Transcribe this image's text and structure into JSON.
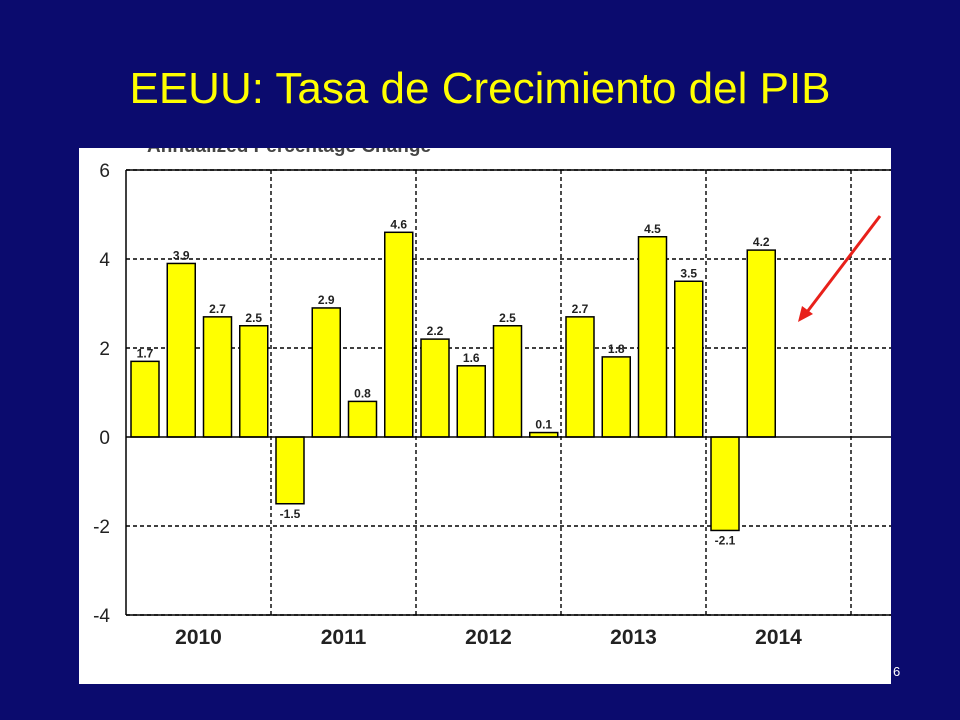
{
  "slide": {
    "title": "EEUU: Tasa de Crecimiento del PIB",
    "page_number": "6"
  },
  "colors": {
    "background": "#0b0b6e",
    "title": "#ffff00",
    "bar_fill": "#ffff00",
    "bar_stroke": "#000000",
    "arrow": "#e8201a"
  },
  "chart_data": {
    "type": "bar",
    "subtitle": "Annualized Percentage Change",
    "year_labels": [
      "2010",
      "2011",
      "2012",
      "2013",
      "2014"
    ],
    "quarters": [
      "2010Q1",
      "2010Q2",
      "2010Q3",
      "2010Q4",
      "2011Q1",
      "2011Q2",
      "2011Q3",
      "2011Q4",
      "2012Q1",
      "2012Q2",
      "2012Q3",
      "2012Q4",
      "2013Q1",
      "2013Q2",
      "2013Q3",
      "2013Q4",
      "2014Q1",
      "2014Q2"
    ],
    "values": [
      1.7,
      3.9,
      2.7,
      2.5,
      -1.5,
      2.9,
      0.8,
      4.6,
      2.2,
      1.6,
      2.5,
      0.1,
      2.7,
      1.8,
      4.5,
      3.5,
      -2.1,
      4.2
    ],
    "value_labels": [
      "1.7",
      "3.9",
      "2.7",
      "2.5",
      "-1.5",
      "2.9",
      "0.8",
      "4.6",
      "2.2",
      "1.6",
      "2.5",
      "0.1",
      "2.7",
      "1.8",
      "4.5",
      "3.5",
      "-2.1",
      "4.2"
    ],
    "ylim": [
      -4,
      6
    ],
    "yticks": [
      6,
      4,
      2,
      0,
      -2,
      -4
    ],
    "grid": "dashed, on",
    "annotation": "red arrow pointing at 2014 Q2 bar"
  }
}
